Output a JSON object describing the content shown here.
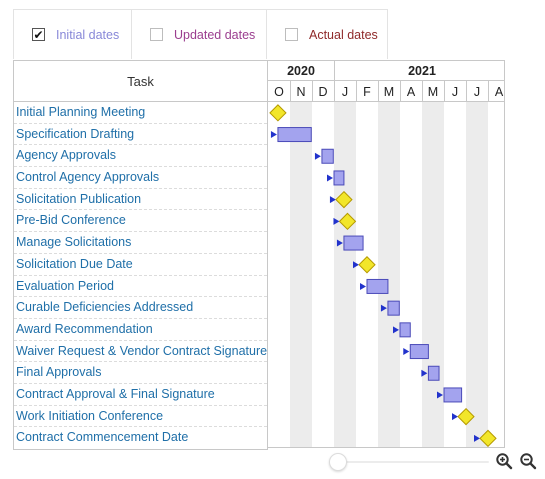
{
  "legend": [
    {
      "label": "Initial dates",
      "checked": true,
      "check_glyph": "✔"
    },
    {
      "label": "Updated dates",
      "checked": false,
      "check_glyph": ""
    },
    {
      "label": "Actual dates",
      "checked": false,
      "check_glyph": ""
    }
  ],
  "table": {
    "header": "Task"
  },
  "tasks": [
    {
      "name": "Initial Planning Meeting",
      "type": "milestone",
      "start": "2020-10-15"
    },
    {
      "name": "Specification Drafting",
      "type": "bar",
      "start": "2020-10-15",
      "end": "2020-11-30"
    },
    {
      "name": "Agency Approvals",
      "type": "bar",
      "start": "2020-12-15",
      "end": "2020-12-31"
    },
    {
      "name": "Control Agency Approvals",
      "type": "bar",
      "start": "2021-01-01",
      "end": "2021-01-15"
    },
    {
      "name": "Solicitation Publication",
      "type": "milestone",
      "start": "2021-01-15"
    },
    {
      "name": "Pre-Bid Conference",
      "type": "milestone",
      "start": "2021-01-20"
    },
    {
      "name": "Manage Solicitations",
      "type": "bar",
      "start": "2021-01-15",
      "end": "2021-02-10"
    },
    {
      "name": "Solicitation Due Date",
      "type": "milestone",
      "start": "2021-02-15"
    },
    {
      "name": "Evaluation Period",
      "type": "bar",
      "start": "2021-02-15",
      "end": "2021-03-15"
    },
    {
      "name": "Curable Deficiencies Addressed",
      "type": "bar",
      "start": "2021-03-15",
      "end": "2021-03-31"
    },
    {
      "name": "Award Recommendation",
      "type": "bar",
      "start": "2021-04-01",
      "end": "2021-04-15"
    },
    {
      "name": "Waiver Request & Vendor Contract Signature",
      "type": "bar",
      "start": "2021-04-15",
      "end": "2021-05-10"
    },
    {
      "name": "Final Approvals",
      "type": "bar",
      "start": "2021-05-10",
      "end": "2021-05-25"
    },
    {
      "name": "Contract Approval & Final Signature",
      "type": "bar",
      "start": "2021-06-01",
      "end": "2021-06-25"
    },
    {
      "name": "Work Initiation Conference",
      "type": "milestone",
      "start": "2021-07-01"
    },
    {
      "name": "Contract Commencement Date",
      "type": "milestone",
      "start": "2021-08-01"
    }
  ],
  "timeline": {
    "years": [
      {
        "label": "2020",
        "months": 3
      },
      {
        "label": "2021",
        "months": 8
      }
    ],
    "months": [
      "O",
      "N",
      "D",
      "J",
      "F",
      "M",
      "A",
      "M",
      "J",
      "J",
      "A"
    ],
    "start_date": "2020-10-01",
    "shaded_months": [
      1,
      3,
      5,
      7,
      9
    ]
  },
  "colors": {
    "bar_fill": "#a3a3ee",
    "bar_stroke": "#4a4ab8",
    "milestone_fill": "#f2e62a",
    "milestone_stroke": "#b59a00",
    "dep_arrow": "#2233cc",
    "link_text": "#1f6fa8",
    "grid_shade": "#ececec"
  },
  "controls": {
    "zoom_in_icon": "zoom-in-icon",
    "zoom_out_icon": "zoom-out-icon",
    "zoom_level": 0
  }
}
